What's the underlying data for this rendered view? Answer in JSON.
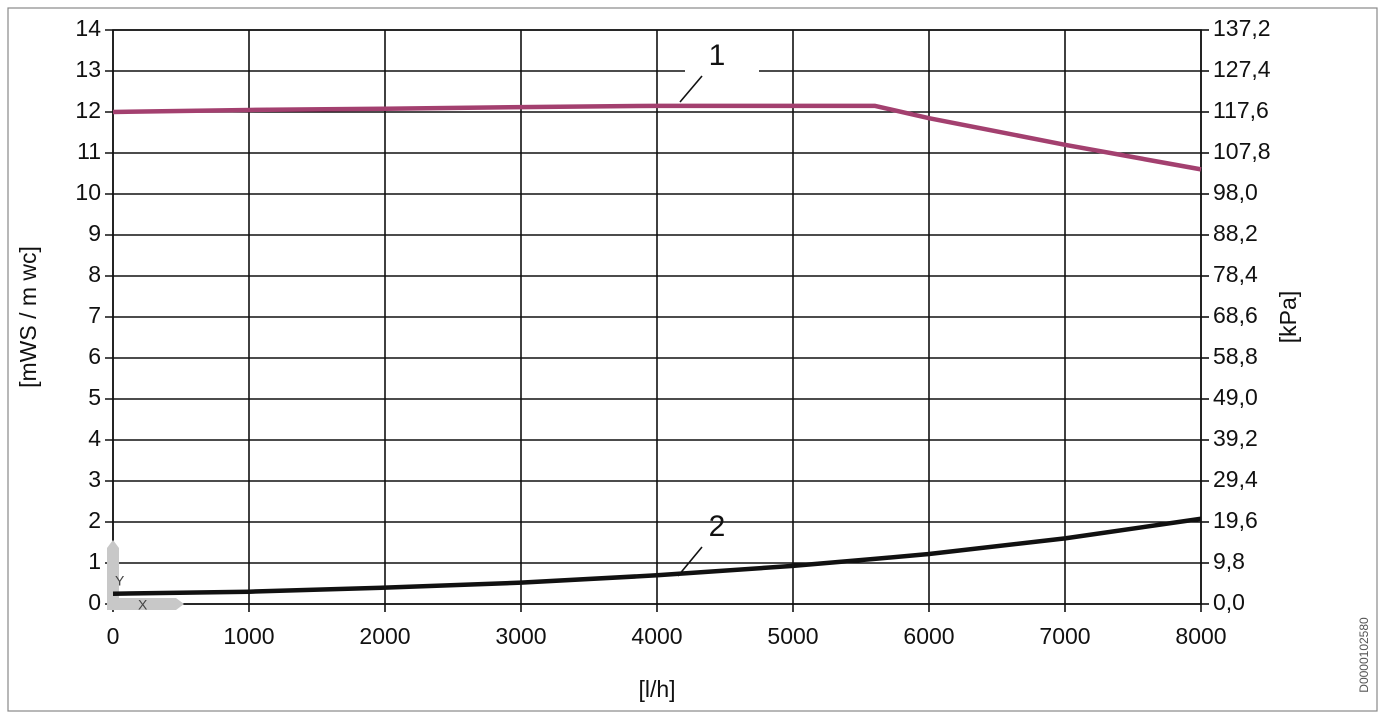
{
  "chart_data": {
    "type": "line",
    "x": [
      0,
      1000,
      2000,
      3000,
      4000,
      5000,
      5600,
      6000,
      7000,
      8000
    ],
    "series": [
      {
        "name": "1",
        "color": "#a3406f",
        "values": [
          12.0,
          12.05,
          12.08,
          12.12,
          12.15,
          12.15,
          12.15,
          11.85,
          11.2,
          10.6
        ]
      },
      {
        "name": "2",
        "color": "#111111",
        "values": [
          0.25,
          0.3,
          0.4,
          0.52,
          0.7,
          0.93,
          1.1,
          1.22,
          1.6,
          2.08
        ]
      }
    ],
    "xlim": [
      0,
      8000
    ],
    "xticks": [
      0,
      1000,
      2000,
      3000,
      4000,
      5000,
      6000,
      7000,
      8000
    ],
    "ylim": [
      0,
      14
    ],
    "yticks": [
      0,
      1,
      2,
      3,
      4,
      5,
      6,
      7,
      8,
      9,
      10,
      11,
      12,
      13,
      14
    ],
    "y2lim": [
      0,
      137.2
    ],
    "y2ticks": [
      {
        "value": 0,
        "label": "0,0"
      },
      {
        "value": 9.8,
        "label": "9,8"
      },
      {
        "value": 19.6,
        "label": "19,6"
      },
      {
        "value": 29.4,
        "label": "29,4"
      },
      {
        "value": 39.2,
        "label": "39,2"
      },
      {
        "value": 49,
        "label": "49,0"
      },
      {
        "value": 58.8,
        "label": "58,8"
      },
      {
        "value": 68.6,
        "label": "68,6"
      },
      {
        "value": 78.4,
        "label": "78,4"
      },
      {
        "value": 88.2,
        "label": "88,2"
      },
      {
        "value": 98,
        "label": "98,0"
      },
      {
        "value": 107.8,
        "label": "107,8"
      },
      {
        "value": 117.6,
        "label": "117,6"
      },
      {
        "value": 127.4,
        "label": "127,4"
      },
      {
        "value": 137.2,
        "label": "137,2"
      }
    ],
    "xlabel": "[l/h]",
    "ylabel": "[mWS / m wc]",
    "y2label": "[kPa]",
    "grid": true,
    "origin_icon_labels": [
      "Y",
      "X"
    ],
    "document_id": "D0000102580"
  }
}
